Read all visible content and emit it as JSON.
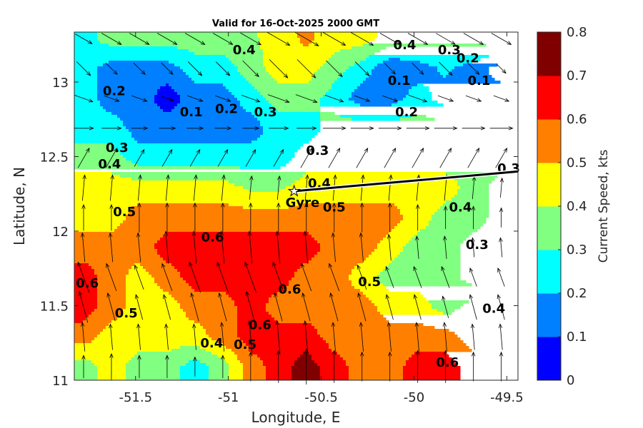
{
  "chart_data": {
    "type": "heatmap",
    "subtype": "filled-contour-with-vectors",
    "title": "Valid for 16-Oct-2025 2000 GMT",
    "xlabel": "Longitude, E",
    "ylabel": "Latitude, N",
    "colorbar_label": "Current Speed, kts",
    "xlim": [
      -51.83,
      -49.44
    ],
    "ylim": [
      11,
      13.335
    ],
    "xticks": [
      -51.5,
      -51,
      -50.5,
      -50,
      -49.5
    ],
    "xtick_labels": [
      "-51.5",
      "-51",
      "-50.5",
      "-50",
      "-49.5"
    ],
    "yticks": [
      11,
      11.5,
      12,
      12.5,
      13
    ],
    "ytick_labels": [
      "11",
      "11.5",
      "12",
      "12.5",
      "13"
    ],
    "levels": [
      0,
      0.1,
      0.2,
      0.3,
      0.4,
      0.5,
      0.6,
      0.7,
      0.8
    ],
    "level_labels": [
      "0",
      "0.1",
      "0.2",
      "0.3",
      "0.4",
      "0.5",
      "0.6",
      "0.7",
      "0.8"
    ],
    "level_colors": [
      "#0000ff",
      "#0080ff",
      "#00ffff",
      "#80ff80",
      "#ffff00",
      "#ff8000",
      "#ff0000",
      "#800000"
    ],
    "grid_lon": [
      -51.78,
      -51.63,
      -51.48,
      -51.33,
      -51.18,
      -51.03,
      -50.88,
      -50.73,
      -50.58,
      -50.43,
      -50.28,
      -50.13,
      -49.98,
      -49.83,
      -49.68,
      -49.53
    ],
    "grid_lat": [
      13.29,
      13.09,
      12.89,
      12.69,
      12.49,
      12.29,
      12.09,
      11.89,
      11.69,
      11.49,
      11.29,
      11.09
    ],
    "speed": [
      [
        0.25,
        0.35,
        0.35,
        0.35,
        0.35,
        0.35,
        0.38,
        0.45,
        0.52,
        0.45,
        0.45,
        0.35,
        0.35,
        0.33,
        0.35,
        0.35
      ],
      [
        0.25,
        0.15,
        0.15,
        0.15,
        0.25,
        0.25,
        0.35,
        0.45,
        0.45,
        0.35,
        0.25,
        0.12,
        0.15,
        0.22,
        0.15,
        0.05
      ],
      [
        0.25,
        0.15,
        0.15,
        0.05,
        0.15,
        0.15,
        0.25,
        0.35,
        0.35,
        0.25,
        0.15,
        0.15,
        0.25,
        0.15,
        0.15,
        0.15
      ],
      [
        0.25,
        0.25,
        0.15,
        0.15,
        0.15,
        0.15,
        0.15,
        0.25,
        0.25,
        0.35,
        0.35,
        0.35,
        0.35,
        0.35,
        0.35,
        0.35
      ],
      [
        0.35,
        0.35,
        0.25,
        0.25,
        0.25,
        0.25,
        0.25,
        0.25,
        0.35,
        0.35,
        0.35,
        0.35,
        0.35,
        0.35,
        0.35,
        0.35
      ],
      [
        0.45,
        0.45,
        0.45,
        0.45,
        0.45,
        0.45,
        0.38,
        0.38,
        0.45,
        0.45,
        0.45,
        0.45,
        0.45,
        0.45,
        0.35,
        0.25
      ],
      [
        0.45,
        0.45,
        0.55,
        0.55,
        0.55,
        0.55,
        0.55,
        0.55,
        0.55,
        0.55,
        0.55,
        0.55,
        0.45,
        0.35,
        0.35,
        0.25
      ],
      [
        0.55,
        0.55,
        0.55,
        0.65,
        0.65,
        0.65,
        0.65,
        0.65,
        0.65,
        0.55,
        0.55,
        0.45,
        0.35,
        0.35,
        0.25,
        0.25
      ],
      [
        0.65,
        0.55,
        0.45,
        0.55,
        0.65,
        0.65,
        0.65,
        0.65,
        0.55,
        0.55,
        0.45,
        0.35,
        0.35,
        0.35,
        0.25,
        0.25
      ],
      [
        0.65,
        0.55,
        0.45,
        0.45,
        0.55,
        0.55,
        0.65,
        0.55,
        0.55,
        0.55,
        0.55,
        0.45,
        0.45,
        0.35,
        0.45,
        0.45
      ],
      [
        0.55,
        0.45,
        0.45,
        0.45,
        0.45,
        0.55,
        0.65,
        0.65,
        0.65,
        0.55,
        0.55,
        0.55,
        0.55,
        0.55,
        0.45,
        0.45
      ],
      [
        0.35,
        0.45,
        0.35,
        0.35,
        0.25,
        0.35,
        0.55,
        0.65,
        0.75,
        0.65,
        0.55,
        0.55,
        0.65,
        0.65,
        0.55,
        0.55
      ]
    ],
    "vector_direction_deg_by_row": [
      -30,
      -45,
      -20,
      0,
      60,
      85,
      90,
      95,
      110,
      105,
      95,
      90
    ],
    "contour_labels": [
      {
        "text": "0.4",
        "lon": -50.915,
        "lat": 13.215
      },
      {
        "text": "0.4",
        "lon": -50.05,
        "lat": 13.25
      },
      {
        "text": "0.3",
        "lon": -49.81,
        "lat": 13.215
      },
      {
        "text": "0.2",
        "lon": -49.71,
        "lat": 13.16
      },
      {
        "text": "0.1",
        "lon": -50.08,
        "lat": 13.01
      },
      {
        "text": "0.1",
        "lon": -49.65,
        "lat": 13.01
      },
      {
        "text": "0.2",
        "lon": -51.615,
        "lat": 12.94
      },
      {
        "text": "0.1",
        "lon": -51.2,
        "lat": 12.8
      },
      {
        "text": "0.2",
        "lon": -51.01,
        "lat": 12.82
      },
      {
        "text": "0.3",
        "lon": -50.8,
        "lat": 12.8
      },
      {
        "text": "0.2",
        "lon": -50.04,
        "lat": 12.8
      },
      {
        "text": "0.3",
        "lon": -51.6,
        "lat": 12.56
      },
      {
        "text": "0.3",
        "lon": -50.52,
        "lat": 12.54
      },
      {
        "text": "0.4",
        "lon": -51.64,
        "lat": 12.45
      },
      {
        "text": "0.3",
        "lon": -49.49,
        "lat": 12.42
      },
      {
        "text": "0.4",
        "lon": -50.51,
        "lat": 12.32
      },
      {
        "text": "0.5",
        "lon": -51.56,
        "lat": 12.13
      },
      {
        "text": "0.5",
        "lon": -50.43,
        "lat": 12.16
      },
      {
        "text": "0.4",
        "lon": -49.75,
        "lat": 12.16
      },
      {
        "text": "0.6",
        "lon": -51.085,
        "lat": 11.96
      },
      {
        "text": "0.3",
        "lon": -49.66,
        "lat": 11.91
      },
      {
        "text": "0.6",
        "lon": -51.76,
        "lat": 11.65
      },
      {
        "text": "0.5",
        "lon": -50.24,
        "lat": 11.66
      },
      {
        "text": "0.6",
        "lon": -50.67,
        "lat": 11.61
      },
      {
        "text": "0.5",
        "lon": -51.55,
        "lat": 11.45
      },
      {
        "text": "0.4",
        "lon": -49.57,
        "lat": 11.48
      },
      {
        "text": "0.6",
        "lon": -50.83,
        "lat": 11.37
      },
      {
        "text": "0.4",
        "lon": -51.09,
        "lat": 11.25
      },
      {
        "text": "0.5",
        "lon": -50.91,
        "lat": 11.24
      },
      {
        "text": "0.6",
        "lon": -49.82,
        "lat": 11.12
      }
    ],
    "gyre": {
      "label": "Gyre",
      "lon": -50.646,
      "lat": 12.268,
      "track_end_lon": -49.44,
      "track_end_lat": 12.4
    }
  }
}
